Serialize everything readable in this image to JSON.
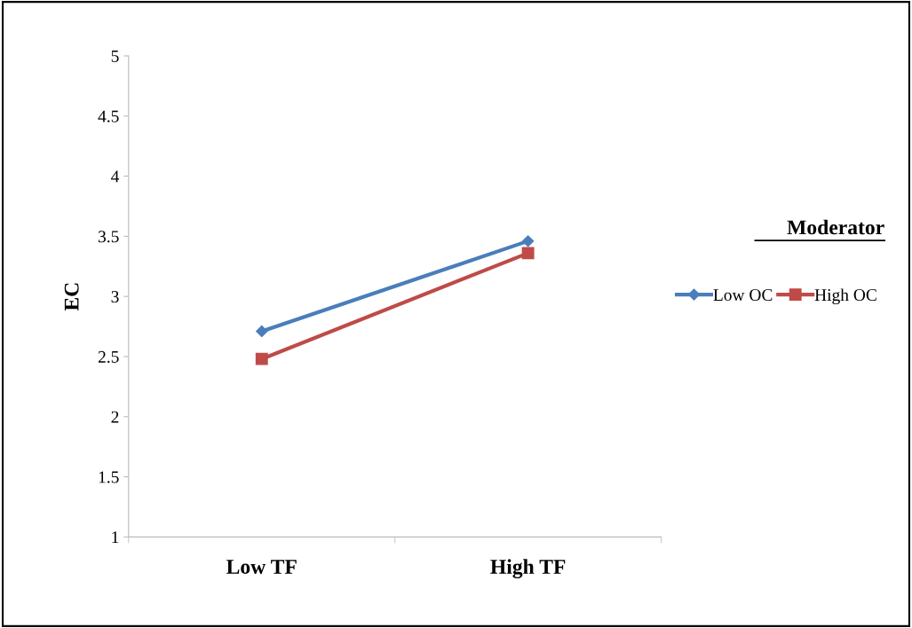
{
  "chart_data": {
    "type": "line",
    "ylabel": "EC",
    "categories": [
      "Low TF",
      "High TF"
    ],
    "series": [
      {
        "name": "Low OC",
        "color": "#4a7ebb",
        "values": [
          2.71,
          3.46
        ],
        "marker": "diamond"
      },
      {
        "name": "High OC",
        "color": "#be4b48",
        "values": [
          2.48,
          3.36
        ],
        "marker": "square"
      }
    ],
    "ylim": [
      1,
      5
    ],
    "yticks": [
      1,
      1.5,
      2,
      2.5,
      3,
      3.5,
      4,
      4.5,
      5
    ],
    "legend": "right",
    "legend_title": "Moderator",
    "grid": false,
    "line_style": "solid"
  }
}
